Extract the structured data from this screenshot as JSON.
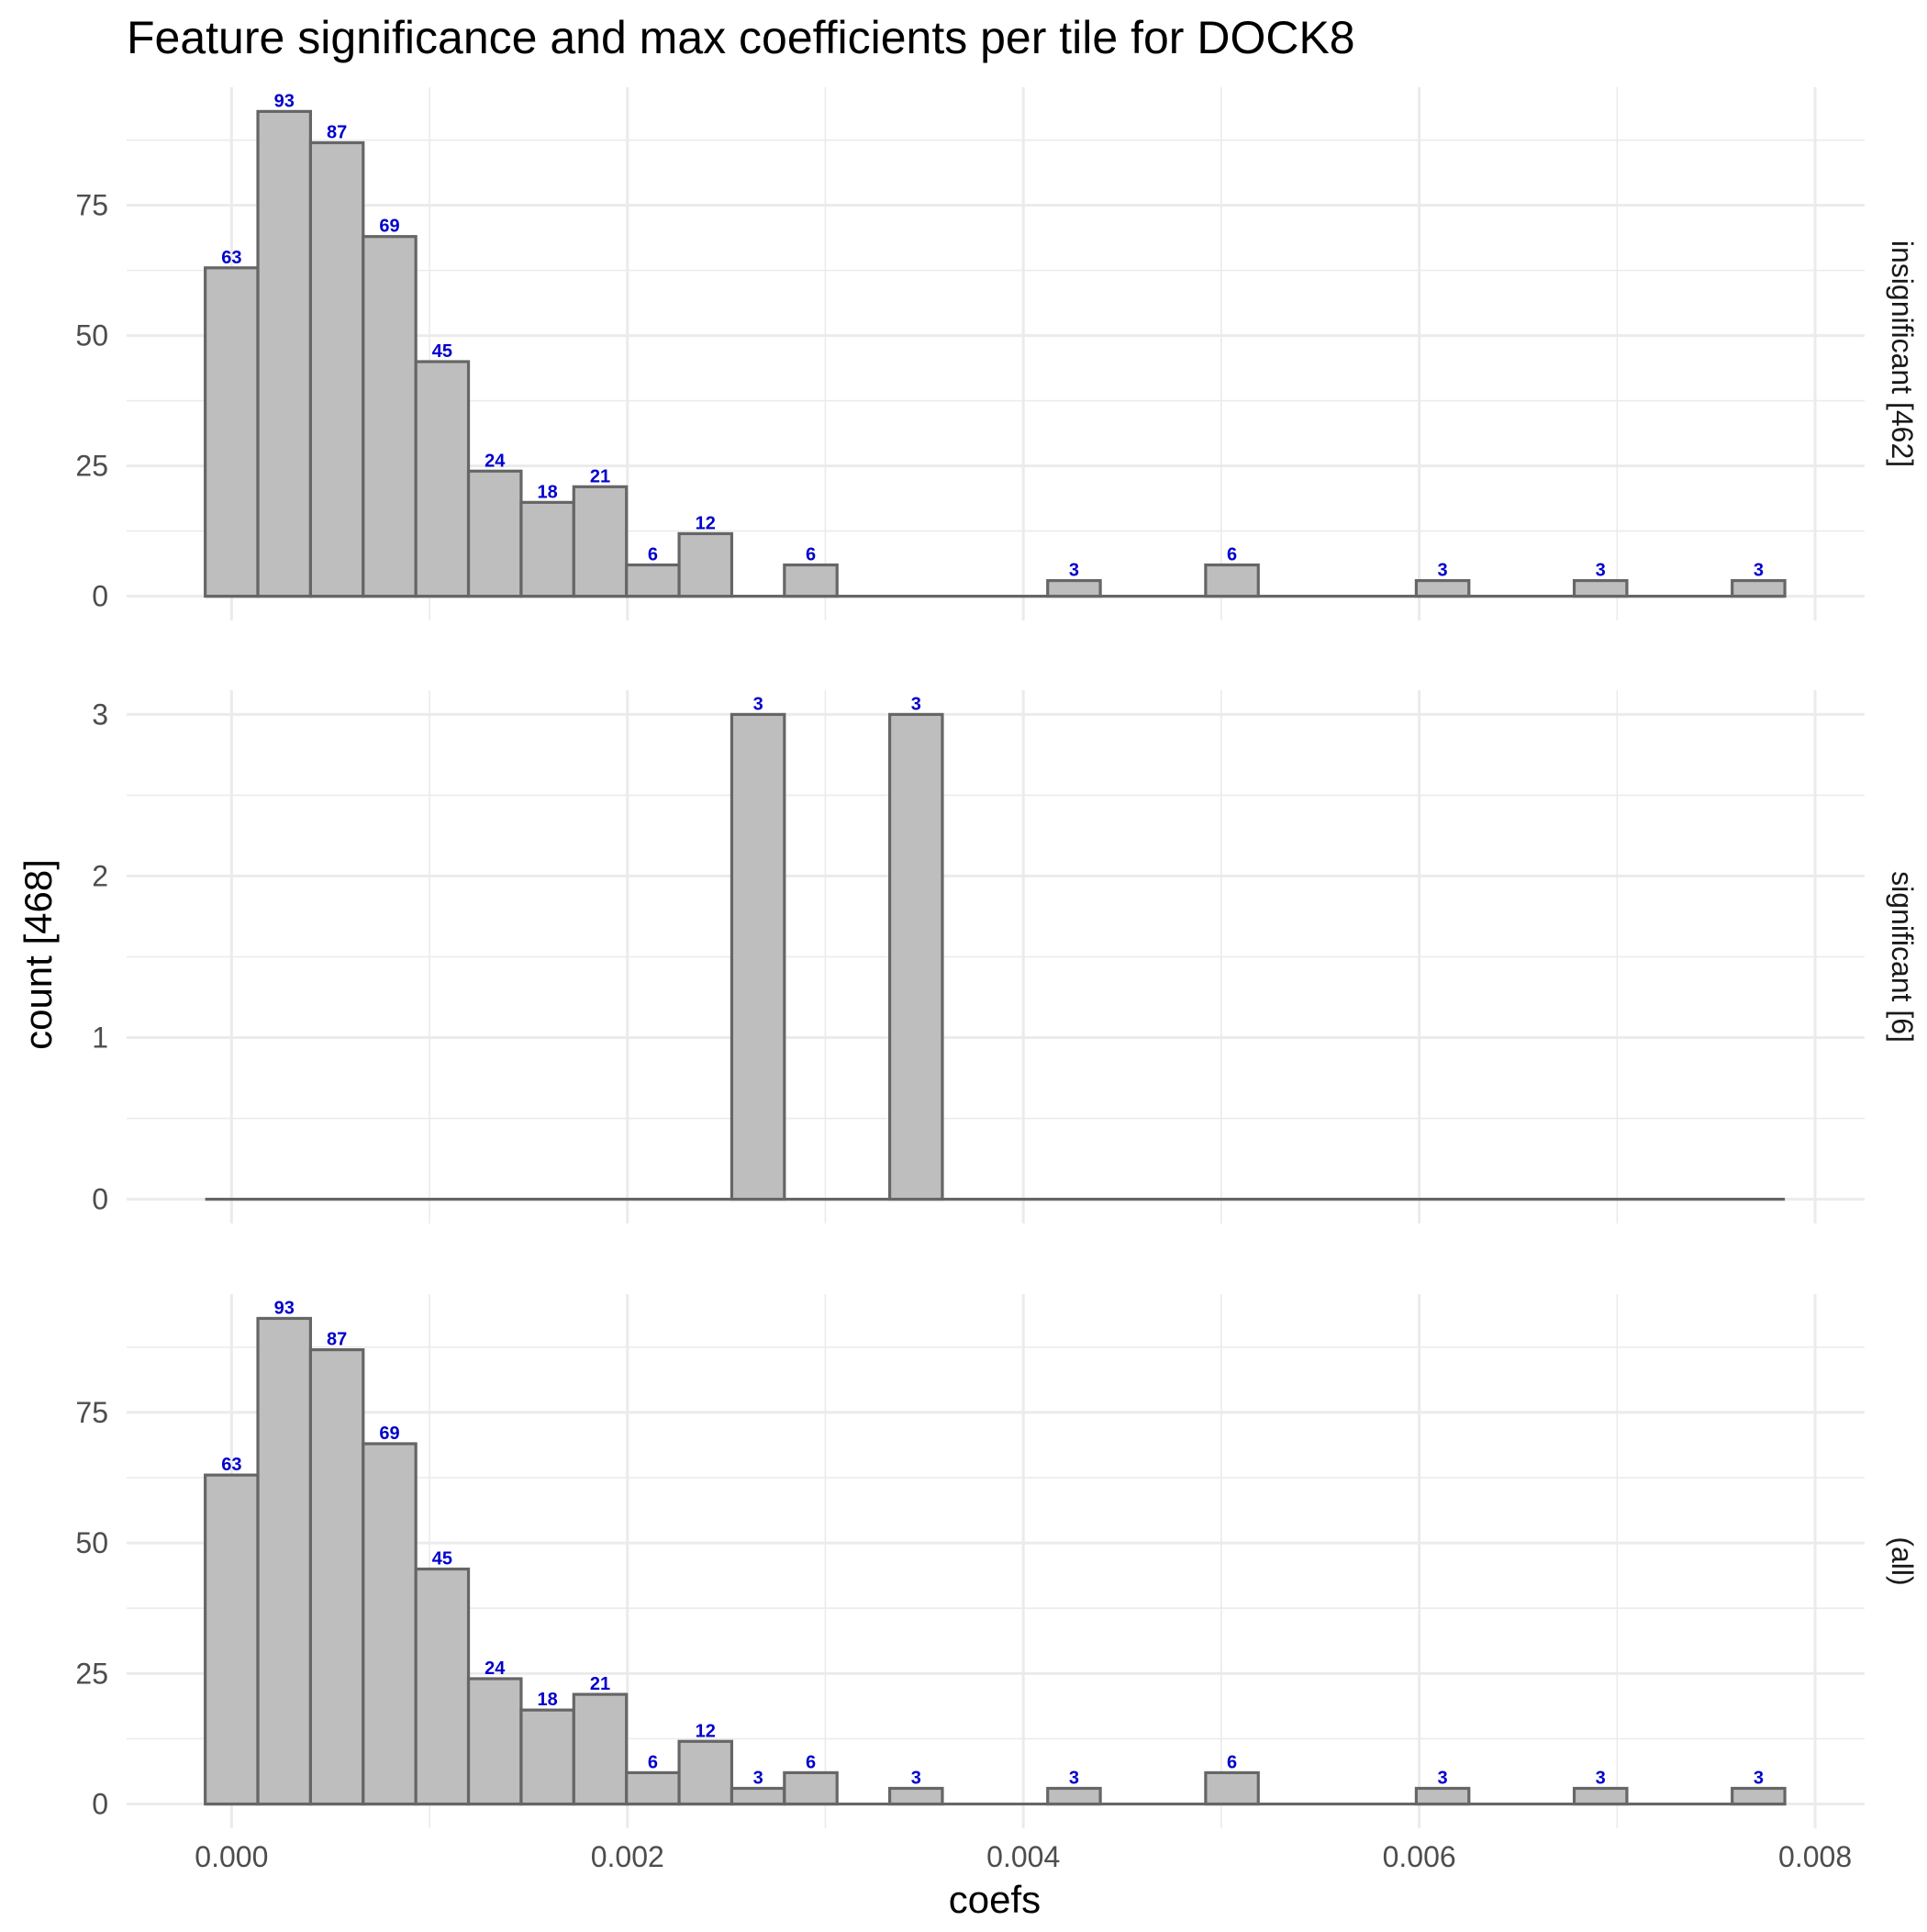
{
  "chart_data": {
    "type": "bar",
    "title": "Feature significance and max coefficients per tile for DOCK8",
    "xlabel": "coefs",
    "ylabel": "count [468]",
    "xlim": [
      -0.00053,
      0.00825
    ],
    "x_ticks": [
      0.0,
      0.002,
      0.004,
      0.006,
      0.008
    ],
    "x_tick_labels": [
      "0.000",
      "0.002",
      "0.004",
      "0.006",
      "0.008"
    ],
    "bin_width": 0.000266,
    "bin_centers": [
      0.0,
      0.000266,
      0.000532,
      0.000798,
      0.001064,
      0.00133,
      0.001596,
      0.001862,
      0.002128,
      0.002394,
      0.00266,
      0.002926,
      0.003192,
      0.003458,
      0.003724,
      0.00399,
      0.004256,
      0.004522,
      0.004788,
      0.005054,
      0.00532,
      0.005586,
      0.005852,
      0.006118,
      0.006384,
      0.00665,
      0.006916,
      0.007182,
      0.007448,
      0.007714
    ],
    "bar_fill": "#bebebe",
    "bar_stroke": "#666666",
    "label_color": "#0000cc",
    "panels": [
      {
        "label": "insignificant [462]",
        "ylim": [
          -4.65,
          97.65
        ],
        "y_ticks": [
          0,
          25,
          50,
          75
        ],
        "y_tick_labels": [
          "0",
          "25",
          "50",
          "75"
        ],
        "counts": [
          63,
          93,
          87,
          69,
          45,
          24,
          18,
          21,
          6,
          12,
          0,
          6,
          0,
          0,
          0,
          0,
          3,
          0,
          0,
          6,
          0,
          0,
          0,
          3,
          0,
          0,
          3,
          0,
          0,
          3
        ]
      },
      {
        "label": "significant [6]",
        "ylim": [
          -0.15,
          3.15
        ],
        "y_ticks": [
          0,
          1,
          2,
          3
        ],
        "y_tick_labels": [
          "0",
          "1",
          "2",
          "3"
        ],
        "counts": [
          0,
          0,
          0,
          0,
          0,
          0,
          0,
          0,
          0,
          0,
          3,
          0,
          0,
          3,
          0,
          0,
          0,
          0,
          0,
          0,
          0,
          0,
          0,
          0,
          0,
          0,
          0,
          0,
          0,
          0
        ]
      },
      {
        "label": "(all)",
        "ylim": [
          -4.65,
          97.65
        ],
        "y_ticks": [
          0,
          25,
          50,
          75
        ],
        "y_tick_labels": [
          "0",
          "25",
          "50",
          "75"
        ],
        "counts": [
          63,
          93,
          87,
          69,
          45,
          24,
          18,
          21,
          6,
          12,
          3,
          6,
          0,
          3,
          0,
          0,
          3,
          0,
          0,
          6,
          0,
          0,
          0,
          3,
          0,
          0,
          3,
          0,
          0,
          3
        ]
      }
    ]
  }
}
